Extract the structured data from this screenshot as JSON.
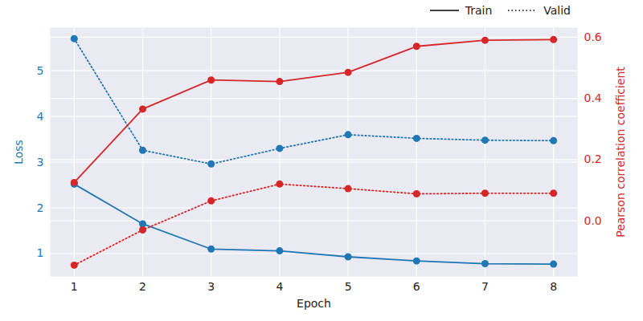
{
  "chart_data": {
    "type": "line",
    "x": [
      1,
      2,
      3,
      4,
      5,
      6,
      7,
      8
    ],
    "xlabel": "Epoch",
    "ylabel": "Loss",
    "y2label": "Pearson correlation coefficient",
    "xlim": [
      0.65,
      8.35
    ],
    "xticks": [
      1,
      2,
      3,
      4,
      5,
      6,
      7,
      8
    ],
    "ylim": [
      0.5,
      5.94
    ],
    "yticks": [
      1,
      2,
      3,
      4,
      5
    ],
    "y2lim": [
      -0.182,
      0.631
    ],
    "y2ticks": [
      {
        "value": 0,
        "label": "0.0"
      },
      {
        "value": 0.2,
        "label": "0.2"
      },
      {
        "value": 0.4,
        "label": "0.4"
      },
      {
        "value": 0.6,
        "label": "0.6"
      }
    ],
    "grid": true,
    "legend": "top right",
    "series": [
      {
        "name": "Train",
        "color": "#1f77b4",
        "axis": "y",
        "line_style": "solid",
        "marker": "circle",
        "values": [
          2.52,
          1.65,
          1.1,
          1.06,
          0.93,
          0.84,
          0.78,
          0.77
        ]
      },
      {
        "name": "Valid",
        "color": "#1f77b4",
        "axis": "y",
        "line_style": "dotted",
        "marker": "circle",
        "values": [
          5.7,
          3.26,
          2.96,
          3.3,
          3.6,
          3.52,
          3.48,
          3.47
        ]
      },
      {
        "name": "Train",
        "color": "#d62728",
        "axis": "y2",
        "line_style": "solid",
        "marker": "circle",
        "values": [
          0.125,
          0.365,
          0.46,
          0.455,
          0.485,
          0.57,
          0.59,
          0.592
        ]
      },
      {
        "name": "Valid",
        "color": "#d62728",
        "axis": "y2",
        "line_style": "dotted",
        "marker": "circle",
        "values": [
          -0.145,
          -0.03,
          0.065,
          0.12,
          0.105,
          0.088,
          0.09,
          0.09
        ]
      }
    ]
  }
}
